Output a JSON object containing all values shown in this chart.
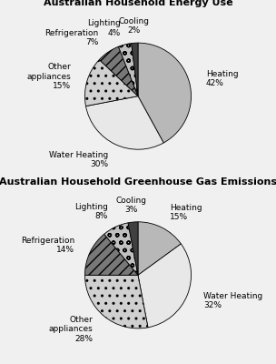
{
  "chart1": {
    "title": "Australian Household Energy Use",
    "values": [
      42,
      30,
      15,
      7,
      4,
      2
    ],
    "labels": [
      "Heating\n42%",
      "Water Heating\n30%",
      "Other\nappliances\n15%",
      "Refrigeration\n7%",
      "Lighting\n4%",
      "Cooling\n2%"
    ],
    "slice_colors": [
      "#b8b8b8",
      "#e8e8e8",
      "#d0d0d0",
      "#787878",
      "#c0c0c0",
      "#404040"
    ],
    "slice_hatches": [
      "",
      "",
      "..",
      "///",
      "oo",
      ""
    ]
  },
  "chart2": {
    "title": "Australian Household Greenhouse Gas Emissions",
    "values": [
      15,
      32,
      28,
      14,
      8,
      3
    ],
    "labels": [
      "Heating\n15%",
      "Water Heating\n32%",
      "Other\nappliances\n28%",
      "Refrigeration\n14%",
      "Lighting\n8%",
      "Cooling\n3%"
    ],
    "slice_colors": [
      "#b8b8b8",
      "#e8e8e8",
      "#d0d0d0",
      "#787878",
      "#c0c0c0",
      "#404040"
    ],
    "slice_hatches": [
      "",
      "",
      "..",
      "///",
      "oo",
      ""
    ]
  },
  "bg_color": "#f0f0f0",
  "title_fontsize": 8,
  "label_fontsize": 6.5,
  "startangle": 90
}
